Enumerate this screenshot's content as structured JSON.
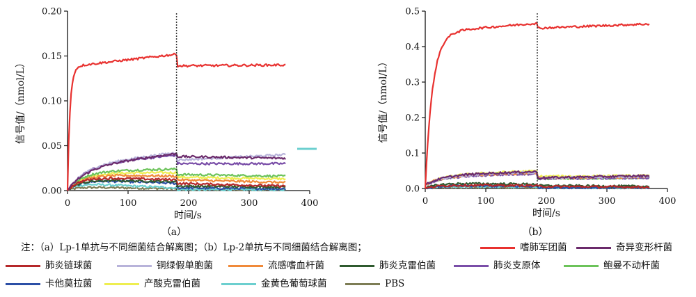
{
  "chart_data": [
    {
      "type": "line",
      "caption": "（a）",
      "xlabel": "时间/s",
      "ylabel": "信号值/（nmol/L）",
      "xlim": [
        0,
        400
      ],
      "ylim": [
        0,
        0.2
      ],
      "xticks": [
        "0",
        "100",
        "200",
        "300",
        "400"
      ],
      "yticks": [
        "0.00",
        "0.05",
        "0.10",
        "0.15",
        "0.20"
      ],
      "dissociation_start": 180,
      "x_end": 360,
      "series": [
        {
          "name": "嗜肺军团菌",
          "color": "#e8312f",
          "assoc": {
            "start": 0.0,
            "plateau": 0.138,
            "tau": 4,
            "end": 0.152
          },
          "dissoc": {
            "start": 0.139,
            "end": 0.14
          }
        },
        {
          "name": "奇异变形杆菌",
          "color": "#6b2a6b",
          "assoc": {
            "start": 0.0,
            "plateau": 0.028,
            "tau": 30,
            "end": 0.042
          },
          "dissoc": {
            "start": 0.038,
            "end": 0.036
          }
        },
        {
          "name": "肺炎链球菌",
          "color": "#b5282a",
          "assoc": {
            "start": 0.0,
            "plateau": 0.015,
            "tau": 20,
            "end": 0.012
          },
          "dissoc": {
            "start": 0.008,
            "end": 0.005
          }
        },
        {
          "name": "铜绿假单胞菌",
          "color": "#b8b3da",
          "assoc": {
            "start": 0.0,
            "plateau": 0.03,
            "tau": 30,
            "end": 0.043
          },
          "dissoc": {
            "start": 0.034,
            "end": 0.04
          }
        },
        {
          "name": "流感嗜血杆菌",
          "color": "#f08a3a",
          "assoc": {
            "start": 0.0,
            "plateau": 0.018,
            "tau": 25,
            "end": 0.016
          },
          "dissoc": {
            "start": 0.012,
            "end": 0.009
          }
        },
        {
          "name": "肺炎克雷伯菌",
          "color": "#2f5a2f",
          "assoc": {
            "start": 0.0,
            "plateau": 0.012,
            "tau": 20,
            "end": 0.01
          },
          "dissoc": {
            "start": 0.005,
            "end": 0.004
          }
        },
        {
          "name": "肺炎支原体",
          "color": "#7a4ea8",
          "assoc": {
            "start": 0.0,
            "plateau": 0.03,
            "tau": 30,
            "end": 0.04
          },
          "dissoc": {
            "start": 0.03,
            "end": 0.03
          }
        },
        {
          "name": "鲍曼不动杆菌",
          "color": "#6cc35a",
          "assoc": {
            "start": 0.0,
            "plateau": 0.022,
            "tau": 25,
            "end": 0.024
          },
          "dissoc": {
            "start": 0.018,
            "end": 0.016
          }
        },
        {
          "name": "卡他莫拉菌",
          "color": "#2c4fa6",
          "assoc": {
            "start": 0.0,
            "plateau": 0.012,
            "tau": 20,
            "end": 0.008
          },
          "dissoc": {
            "start": 0.003,
            "end": 0.002
          }
        },
        {
          "name": "产酸克雷伯菌",
          "color": "#eeee50",
          "assoc": {
            "start": 0.0,
            "plateau": 0.02,
            "tau": 25,
            "end": 0.02
          },
          "dissoc": {
            "start": 0.015,
            "end": 0.013
          }
        },
        {
          "name": "金黄色葡萄球菌",
          "color": "#6ccfcf",
          "assoc": {
            "start": 0.0,
            "plateau": 0.008,
            "tau": 15,
            "end": 0.003
          },
          "dissoc": {
            "start": 0.001,
            "end": 0.001
          }
        },
        {
          "name": "PBS",
          "color": "#7d7d55",
          "assoc": {
            "start": 0.0,
            "plateau": 0.004,
            "tau": 15,
            "end": 0.002
          },
          "dissoc": {
            "start": 0.001,
            "end": 0.001
          }
        }
      ]
    },
    {
      "type": "line",
      "caption": "（b）",
      "xlabel": "时间/s",
      "ylabel": "信号值/（nmol/L）",
      "xlim": [
        0,
        400
      ],
      "ylim": [
        0,
        0.5
      ],
      "xticks": [
        "0",
        "100",
        "200",
        "300",
        "400"
      ],
      "yticks": [
        "0.0",
        "0.1",
        "0.2",
        "0.3",
        "0.4",
        "0.5"
      ],
      "dissociation_start": 185,
      "x_end": 370,
      "series": [
        {
          "name": "嗜肺军团菌",
          "color": "#e8312f",
          "assoc": {
            "start": 0.0,
            "plateau": 0.44,
            "tau": 12,
            "end": 0.466
          },
          "dissoc": {
            "start": 0.452,
            "end": 0.464
          }
        },
        {
          "name": "奇异变形杆菌",
          "color": "#6b2a6b",
          "assoc": {
            "start": 0.01,
            "plateau": 0.03,
            "tau": 30,
            "end": 0.038
          },
          "dissoc": {
            "start": 0.03,
            "end": 0.036
          }
        },
        {
          "name": "肺炎链球菌",
          "color": "#b5282a",
          "assoc": {
            "start": 0.0,
            "plateau": 0.01,
            "tau": 20,
            "end": 0.008
          },
          "dissoc": {
            "start": 0.006,
            "end": 0.004
          }
        },
        {
          "name": "铜绿假单胞菌",
          "color": "#b8b3da",
          "assoc": {
            "start": 0.01,
            "plateau": 0.028,
            "tau": 30,
            "end": 0.036
          },
          "dissoc": {
            "start": 0.03,
            "end": 0.034
          }
        },
        {
          "name": "流感嗜血杆菌",
          "color": "#f08a3a",
          "assoc": {
            "start": 0.01,
            "plateau": 0.025,
            "tau": 25,
            "end": 0.035
          },
          "dissoc": {
            "start": 0.03,
            "end": 0.032
          }
        },
        {
          "name": "肺炎克雷伯菌",
          "color": "#2f5a2f",
          "assoc": {
            "start": 0.0,
            "plateau": 0.015,
            "tau": 20,
            "end": 0.012
          },
          "dissoc": {
            "start": 0.008,
            "end": 0.006
          }
        },
        {
          "name": "肺炎支原体",
          "color": "#7a4ea8",
          "assoc": {
            "start": 0.01,
            "plateau": 0.025,
            "tau": 30,
            "end": 0.032
          },
          "dissoc": {
            "start": 0.028,
            "end": 0.03
          }
        },
        {
          "name": "鲍曼不动杆菌",
          "color": "#6cc35a",
          "assoc": {
            "start": 0.01,
            "plateau": 0.028,
            "tau": 30,
            "end": 0.034
          },
          "dissoc": {
            "start": 0.028,
            "end": 0.03
          }
        },
        {
          "name": "卡他莫拉菌",
          "color": "#2c4fa6",
          "assoc": {
            "start": 0.0,
            "plateau": 0.008,
            "tau": 20,
            "end": 0.006
          },
          "dissoc": {
            "start": 0.003,
            "end": 0.002
          }
        },
        {
          "name": "产酸克雷伯菌",
          "color": "#eeee50",
          "assoc": {
            "start": 0.01,
            "plateau": 0.03,
            "tau": 30,
            "end": 0.04
          },
          "dissoc": {
            "start": 0.034,
            "end": 0.036
          }
        },
        {
          "name": "金黄色葡萄球菌",
          "color": "#6ccfcf",
          "assoc": {
            "start": 0.0,
            "plateau": 0.006,
            "tau": 15,
            "end": 0.004
          },
          "dissoc": {
            "start": 0.002,
            "end": 0.002
          }
        },
        {
          "name": "PBS",
          "color": "#7d7d55",
          "assoc": {
            "start": 0.0,
            "plateau": 0.004,
            "tau": 15,
            "end": 0.003
          },
          "dissoc": {
            "start": 0.002,
            "end": 0.002
          }
        }
      ]
    }
  ],
  "legend": {
    "note": "注：（a）Lp-1单抗与不同细菌结合解离图；（b）Lp-2单抗与不同细菌结合解离图；",
    "items": [
      {
        "name": "嗜肺军团菌",
        "color": "#e8312f"
      },
      {
        "name": "奇异变形杆菌",
        "color": "#6b2a6b"
      },
      {
        "name": "肺炎链球菌",
        "color": "#b5282a"
      },
      {
        "name": "铜绿假单胞菌",
        "color": "#b8b3da"
      },
      {
        "name": "流感嗜血杆菌",
        "color": "#f08a3a"
      },
      {
        "name": "肺炎克雷伯菌",
        "color": "#2f5a2f"
      },
      {
        "name": "肺炎支原体",
        "color": "#7a4ea8"
      },
      {
        "name": "鲍曼不动杆菌",
        "color": "#6cc35a"
      },
      {
        "name": "卡他莫拉菌",
        "color": "#2c4fa6"
      },
      {
        "name": "产酸克雷伯菌",
        "color": "#eeee50"
      },
      {
        "name": "金黄色葡萄球菌",
        "color": "#6ccfcf"
      },
      {
        "name": "PBS",
        "color": "#7d7d55"
      }
    ]
  }
}
